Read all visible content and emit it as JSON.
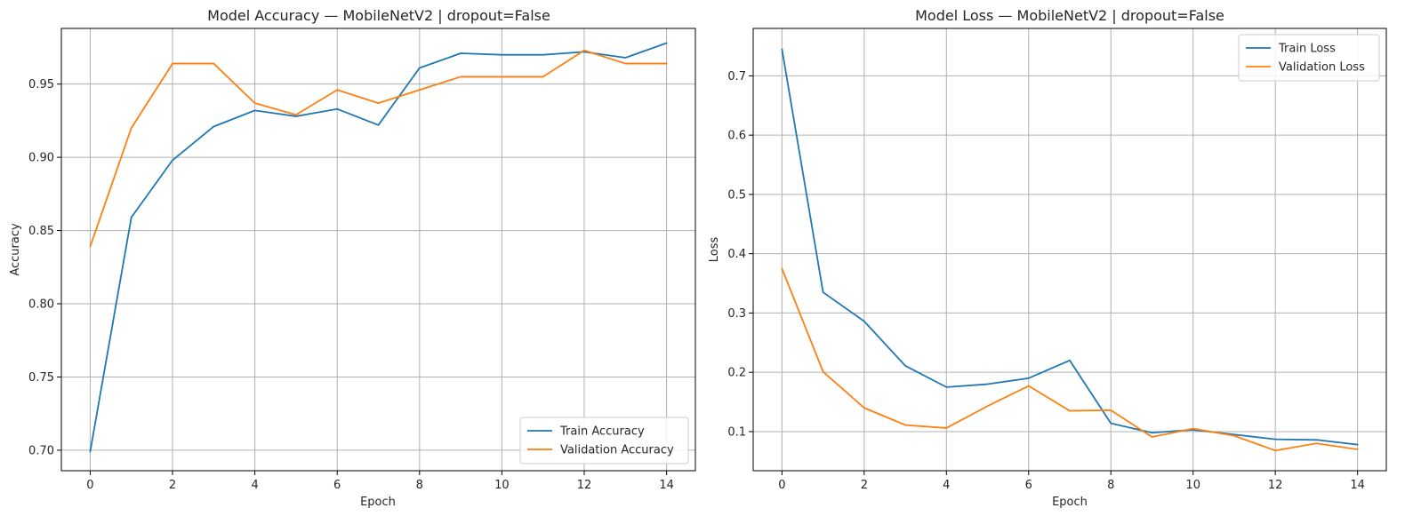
{
  "chart_data": [
    {
      "type": "line",
      "title": "Model Accuracy — MobileNetV2 | dropout=False",
      "xlabel": "Epoch",
      "ylabel": "Accuracy",
      "x": [
        0,
        1,
        2,
        3,
        4,
        5,
        6,
        7,
        8,
        9,
        10,
        11,
        12,
        13,
        14
      ],
      "xlim": [
        -0.7,
        14.7
      ],
      "ylim": [
        0.686,
        0.988
      ],
      "xticks": [
        0,
        2,
        4,
        6,
        8,
        10,
        12,
        14
      ],
      "yticks": [
        0.7,
        0.75,
        0.8,
        0.85,
        0.9,
        0.95
      ],
      "ytick_labels": [
        "0.70",
        "0.75",
        "0.80",
        "0.85",
        "0.90",
        "0.95"
      ],
      "grid": true,
      "legend": "lower-right",
      "series": [
        {
          "name": "Train Accuracy",
          "color": "#1f77b4",
          "values": [
            0.699,
            0.859,
            0.898,
            0.921,
            0.932,
            0.928,
            0.933,
            0.922,
            0.961,
            0.971,
            0.97,
            0.97,
            0.972,
            0.968,
            0.978
          ]
        },
        {
          "name": "Validation Accuracy",
          "color": "#ff7f0e",
          "values": [
            0.839,
            0.92,
            0.964,
            0.964,
            0.937,
            0.929,
            0.946,
            0.937,
            0.946,
            0.955,
            0.955,
            0.955,
            0.973,
            0.964,
            0.964
          ]
        }
      ]
    },
    {
      "type": "line",
      "title": "Model Loss — MobileNetV2 | dropout=False",
      "xlabel": "Epoch",
      "ylabel": "Loss",
      "x": [
        0,
        1,
        2,
        3,
        4,
        5,
        6,
        7,
        8,
        9,
        10,
        11,
        12,
        13,
        14
      ],
      "xlim": [
        -0.7,
        14.7
      ],
      "ylim": [
        0.034,
        0.78
      ],
      "xticks": [
        0,
        2,
        4,
        6,
        8,
        10,
        12,
        14
      ],
      "yticks": [
        0.1,
        0.2,
        0.3,
        0.4,
        0.5,
        0.6,
        0.7
      ],
      "ytick_labels": [
        "0.1",
        "0.2",
        "0.3",
        "0.4",
        "0.5",
        "0.6",
        "0.7"
      ],
      "grid": true,
      "legend": "upper-right",
      "series": [
        {
          "name": "Train Loss",
          "color": "#1f77b4",
          "values": [
            0.745,
            0.335,
            0.286,
            0.211,
            0.175,
            0.18,
            0.19,
            0.22,
            0.114,
            0.098,
            0.103,
            0.095,
            0.087,
            0.086,
            0.078
          ]
        },
        {
          "name": "Validation Loss",
          "color": "#ff7f0e",
          "values": [
            0.375,
            0.201,
            0.14,
            0.111,
            0.106,
            0.143,
            0.177,
            0.135,
            0.136,
            0.091,
            0.105,
            0.093,
            0.068,
            0.08,
            0.07
          ]
        }
      ]
    }
  ]
}
